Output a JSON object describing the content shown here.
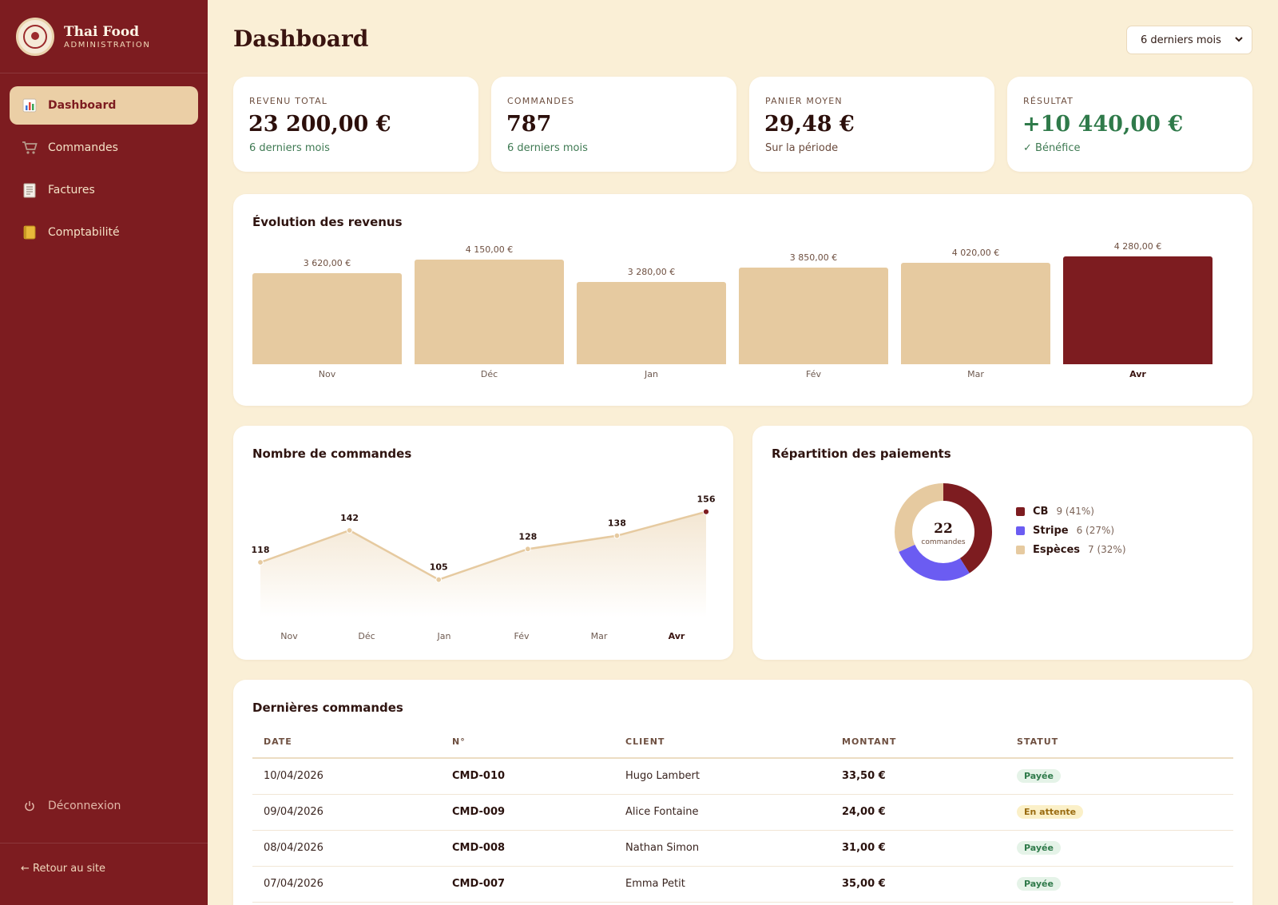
{
  "brand": {
    "title": "Thai Food",
    "subtitle": "ADMINISTRATION"
  },
  "nav": [
    {
      "label": "Dashboard",
      "icon": "bar-chart-icon",
      "active": true
    },
    {
      "label": "Commandes",
      "icon": "cart-icon",
      "active": false
    },
    {
      "label": "Factures",
      "icon": "invoice-icon",
      "active": false
    },
    {
      "label": "Comptabilité",
      "icon": "ledger-icon",
      "active": false
    }
  ],
  "logout_label": "Déconnexion",
  "back_label": "← Retour au site",
  "page_title": "Dashboard",
  "period_select": "6 derniers mois",
  "kpis": [
    {
      "label": "REVENU TOTAL",
      "value": "23 200,00 €",
      "sub": "6 derniers mois"
    },
    {
      "label": "COMMANDES",
      "value": "787",
      "sub": "6 derniers mois"
    },
    {
      "label": "PANIER MOYEN",
      "value": "29,48 €",
      "sub": "Sur la période"
    },
    {
      "label": "RÉSULTAT",
      "value": "+10 440,00 €",
      "sub": "✓ Bénéfice"
    }
  ],
  "colors": {
    "primary": "#7d1c20",
    "accent": "#e6caa0",
    "stripe": "#6b5cf2",
    "positive": "#2f7a4a",
    "background": "#faefd6"
  },
  "revenue_card_title": "Évolution des revenus",
  "orders_card_title": "Nombre de commandes",
  "payments_card_title": "Répartition des paiements",
  "table_title": "Dernières commandes",
  "chart_data": [
    {
      "type": "bar",
      "title": "Évolution des revenus",
      "categories": [
        "Nov",
        "Déc",
        "Jan",
        "Fév",
        "Mar",
        "Avr"
      ],
      "values": [
        3620,
        4150,
        3280,
        3850,
        4020,
        4280
      ],
      "value_labels": [
        "3 620,00 €",
        "4 150,00 €",
        "3 280,00 €",
        "3 850,00 €",
        "4 020,00 €",
        "4 280,00 €"
      ],
      "highlight": "Avr"
    },
    {
      "type": "line",
      "title": "Nombre de commandes",
      "categories": [
        "Nov",
        "Déc",
        "Jan",
        "Fév",
        "Mar",
        "Avr"
      ],
      "values": [
        118,
        142,
        105,
        128,
        138,
        156
      ],
      "highlight": "Avr"
    },
    {
      "type": "pie",
      "title": "Répartition des paiements",
      "center_value": "22",
      "center_label": "commandes",
      "slices": [
        {
          "name": "CB",
          "value": 9,
          "label": "9 (41%)",
          "color": "#7d1c20"
        },
        {
          "name": "Stripe",
          "value": 6,
          "label": "6 (27%)",
          "color": "#6b5cf2"
        },
        {
          "name": "Espèces",
          "value": 7,
          "label": "7 (32%)",
          "color": "#e6caa0"
        }
      ]
    }
  ],
  "orders_table": {
    "headers": [
      "DATE",
      "N°",
      "CLIENT",
      "MONTANT",
      "STATUT"
    ],
    "rows": [
      {
        "date": "10/04/2026",
        "id": "CMD-010",
        "client": "Hugo Lambert",
        "amount": "33,50 €",
        "status": "Payée",
        "status_type": "paid"
      },
      {
        "date": "09/04/2026",
        "id": "CMD-009",
        "client": "Alice Fontaine",
        "amount": "24,00 €",
        "status": "En attente",
        "status_type": "pending"
      },
      {
        "date": "08/04/2026",
        "id": "CMD-008",
        "client": "Nathan Simon",
        "amount": "31,00 €",
        "status": "Payée",
        "status_type": "paid"
      },
      {
        "date": "07/04/2026",
        "id": "CMD-007",
        "client": "Emma Petit",
        "amount": "35,00 €",
        "status": "Payée",
        "status_type": "paid"
      }
    ]
  }
}
